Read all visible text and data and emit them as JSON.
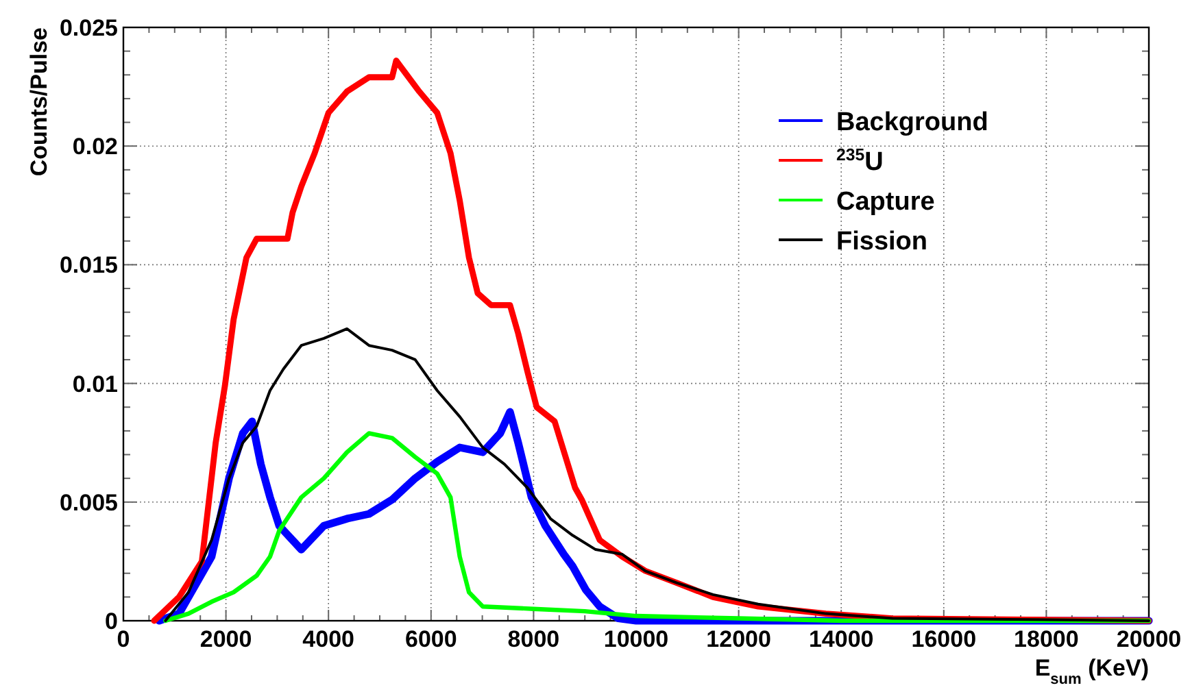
{
  "chart_data": {
    "type": "line",
    "xlabel": "E$_{sum}$ (KeV)",
    "ylabel": "Counts/Pulse",
    "xlim": [
      0,
      20000
    ],
    "ylim": [
      0,
      0.025
    ],
    "xticks": [
      0,
      {
        "value": 500,
        "label": null
      },
      {
        "value": 1000,
        "label": null
      },
      {
        "value": 1500,
        "label": null
      },
      2000,
      {
        "value": 2500,
        "label": null
      },
      {
        "value": 3000,
        "label": null
      },
      {
        "value": 3500,
        "label": null
      },
      4000,
      {
        "value": 4500,
        "label": null
      },
      {
        "value": 5000,
        "label": null
      },
      {
        "value": 5500,
        "label": null
      },
      6000,
      {
        "value": 6500,
        "label": null
      },
      {
        "value": 7000,
        "label": null
      },
      {
        "value": 7500,
        "label": null
      },
      8000,
      {
        "value": 8500,
        "label": null
      },
      {
        "value": 9000,
        "label": null
      },
      {
        "value": 9500,
        "label": null
      },
      10000,
      {
        "value": 10500,
        "label": null
      },
      {
        "value": 11000,
        "label": null
      },
      {
        "value": 11500,
        "label": null
      },
      12000,
      {
        "value": 12500,
        "label": null
      },
      {
        "value": 13000,
        "label": null
      },
      {
        "value": 13500,
        "label": null
      },
      14000,
      {
        "value": 14500,
        "label": null
      },
      {
        "value": 15000,
        "label": null
      },
      {
        "value": 15500,
        "label": null
      },
      16000,
      {
        "value": 16500,
        "label": null
      },
      {
        "value": 17000,
        "label": null
      },
      {
        "value": 17500,
        "label": null
      },
      18000,
      {
        "value": 18500,
        "label": null
      },
      {
        "value": 19000,
        "label": null
      },
      {
        "value": 19500,
        "label": null
      },
      20000
    ],
    "yticks": [
      0,
      {
        "value": 0.001,
        "label": null
      },
      {
        "value": 0.002,
        "label": null
      },
      {
        "value": 0.003,
        "label": null
      },
      {
        "value": 0.004,
        "label": null
      },
      0.005,
      {
        "value": 0.006,
        "label": null
      },
      {
        "value": 0.007,
        "label": null
      },
      {
        "value": 0.008,
        "label": null
      },
      {
        "value": 0.009,
        "label": null
      },
      0.01,
      {
        "value": 0.011,
        "label": null
      },
      {
        "value": 0.012,
        "label": null
      },
      {
        "value": 0.013,
        "label": null
      },
      {
        "value": 0.014,
        "label": null
      },
      0.015,
      {
        "value": 0.016,
        "label": null
      },
      {
        "value": 0.017,
        "label": null
      },
      {
        "value": 0.018,
        "label": null
      },
      {
        "value": 0.019,
        "label": null
      },
      0.02,
      {
        "value": 0.021,
        "label": null
      },
      {
        "value": 0.022,
        "label": null
      },
      {
        "value": 0.023,
        "label": null
      },
      {
        "value": 0.024,
        "label": null
      },
      0.025
    ],
    "grid": true,
    "legend": "top right",
    "marker": "none",
    "line_style": "solid",
    "series": [
      {
        "name": "Background",
        "color": "#0000ff",
        "x": [
          700,
          1085,
          1720,
          2060,
          2330,
          2510,
          2680,
          2860,
          3040,
          3470,
          3910,
          4360,
          4790,
          5240,
          5690,
          6120,
          6560,
          7010,
          7350,
          7540,
          7700,
          7960,
          8230,
          8590,
          8760,
          9020,
          9290,
          9650,
          10000,
          20000
        ],
        "values": [
          0,
          0.0003,
          0.0027,
          0.006,
          0.0079,
          0.0084,
          0.0066,
          0.0052,
          0.004,
          0.003,
          0.004,
          0.0043,
          0.0045,
          0.0051,
          0.006,
          0.0067,
          0.0073,
          0.0071,
          0.0079,
          0.0088,
          0.0075,
          0.0052,
          0.004,
          0.0028,
          0.0023,
          0.0013,
          0.0006,
          0.0001,
          0,
          0
        ]
      },
      {
        "name": "$^{235}$U",
        "color": "#ff0000",
        "x": [
          600,
          1085,
          1530,
          1800,
          1980,
          2150,
          2400,
          2600,
          3200,
          3300,
          3470,
          3730,
          4000,
          4360,
          4790,
          5240,
          5320,
          5770,
          6120,
          6380,
          6560,
          6740,
          6910,
          7170,
          7540,
          7700,
          7880,
          8060,
          8410,
          8810,
          8940,
          9290,
          9730,
          10180,
          10790,
          11500,
          12380,
          13700,
          15000,
          20000
        ],
        "values": [
          0,
          0.001,
          0.0025,
          0.0075,
          0.0099,
          0.0127,
          0.0153,
          0.0161,
          0.0161,
          0.0172,
          0.0183,
          0.0197,
          0.0214,
          0.0223,
          0.0229,
          0.0229,
          0.0236,
          0.0223,
          0.0214,
          0.0197,
          0.0177,
          0.0153,
          0.0138,
          0.0133,
          0.0133,
          0.0121,
          0.0105,
          0.009,
          0.0084,
          0.0056,
          0.0051,
          0.0034,
          0.0027,
          0.0021,
          0.0016,
          0.001,
          0.0006,
          0.0003,
          0.0001,
          0
        ]
      },
      {
        "name": "Capture",
        "color": "#00ff00",
        "x": [
          820,
          1270,
          1720,
          2150,
          2600,
          2860,
          3040,
          3470,
          3910,
          4360,
          4790,
          5240,
          5690,
          6120,
          6380,
          6560,
          6740,
          7010,
          8000,
          9000,
          10000,
          12000,
          14000,
          20000
        ],
        "values": [
          0,
          0.0003,
          0.0008,
          0.0012,
          0.0019,
          0.0027,
          0.0038,
          0.0052,
          0.006,
          0.0071,
          0.0079,
          0.0077,
          0.0069,
          0.0062,
          0.0052,
          0.0027,
          0.0012,
          0.0006,
          0.0005,
          0.0004,
          0.0002,
          0.0001,
          0,
          0
        ]
      },
      {
        "name": "Fission",
        "color": "#000000",
        "x": [
          820,
          1270,
          1720,
          2060,
          2330,
          2600,
          2860,
          3120,
          3470,
          3910,
          4360,
          4790,
          5240,
          5690,
          6120,
          6560,
          7010,
          7430,
          7880,
          8330,
          8760,
          9210,
          9730,
          10180,
          10790,
          11500,
          12380,
          13700,
          15000,
          20000
        ],
        "values": [
          0,
          0.0012,
          0.0034,
          0.006,
          0.0075,
          0.0082,
          0.0097,
          0.0106,
          0.0116,
          0.0119,
          0.0123,
          0.0116,
          0.0114,
          0.011,
          0.0097,
          0.0086,
          0.0073,
          0.0066,
          0.0056,
          0.0043,
          0.0036,
          0.003,
          0.0028,
          0.0021,
          0.0016,
          0.0011,
          0.0007,
          0.0003,
          0.0001,
          0
        ]
      }
    ]
  }
}
